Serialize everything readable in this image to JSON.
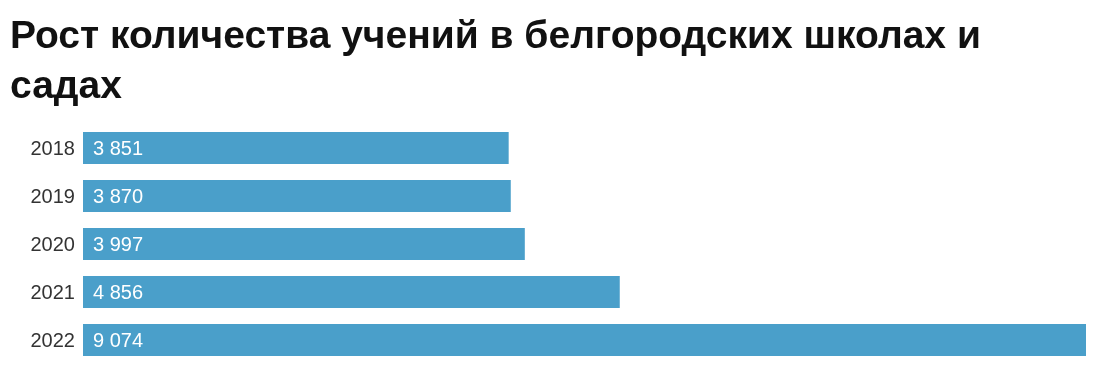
{
  "chart_data": {
    "type": "bar",
    "orientation": "horizontal",
    "title": "Рост количества учений в белгородских школах и садах",
    "categories": [
      "2018",
      "2019",
      "2020",
      "2021",
      "2022"
    ],
    "values": [
      3851,
      3870,
      3997,
      4856,
      9074
    ],
    "value_labels": [
      "3 851",
      "3 870",
      "3 997",
      "4 856",
      "9 074"
    ],
    "color": "#4a9fca",
    "tick_labels": "y"
  }
}
